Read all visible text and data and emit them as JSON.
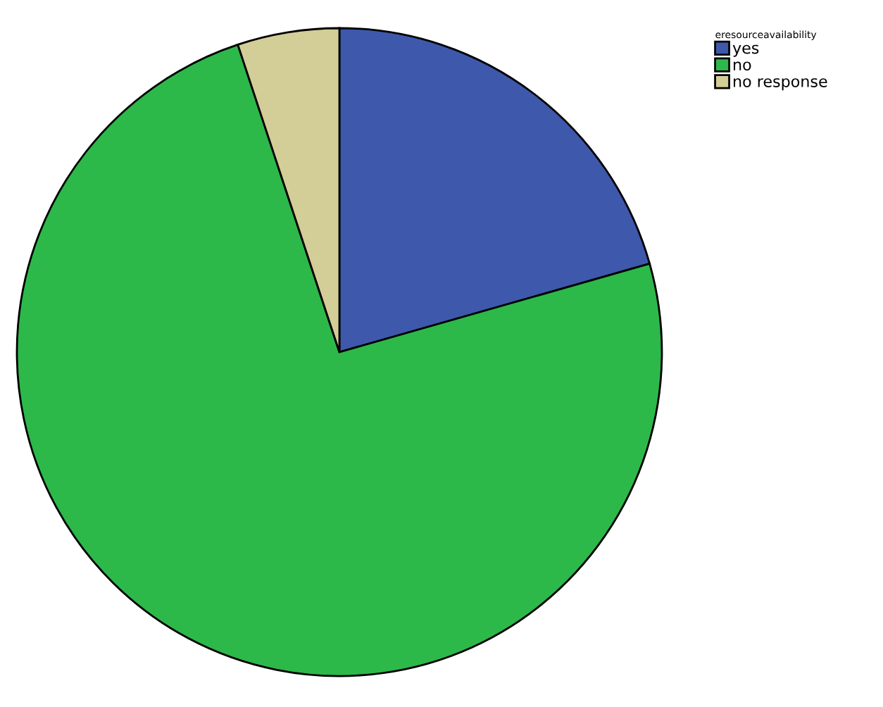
{
  "chart_data": {
    "type": "pie",
    "legend_title": "eresourceavailability",
    "categories": [
      "yes",
      "no",
      "no response"
    ],
    "values": [
      20.6,
      74.3,
      5.1
    ],
    "colors": [
      "#3e58ac",
      "#2db84a",
      "#d3cd98"
    ],
    "legend": "top right"
  }
}
